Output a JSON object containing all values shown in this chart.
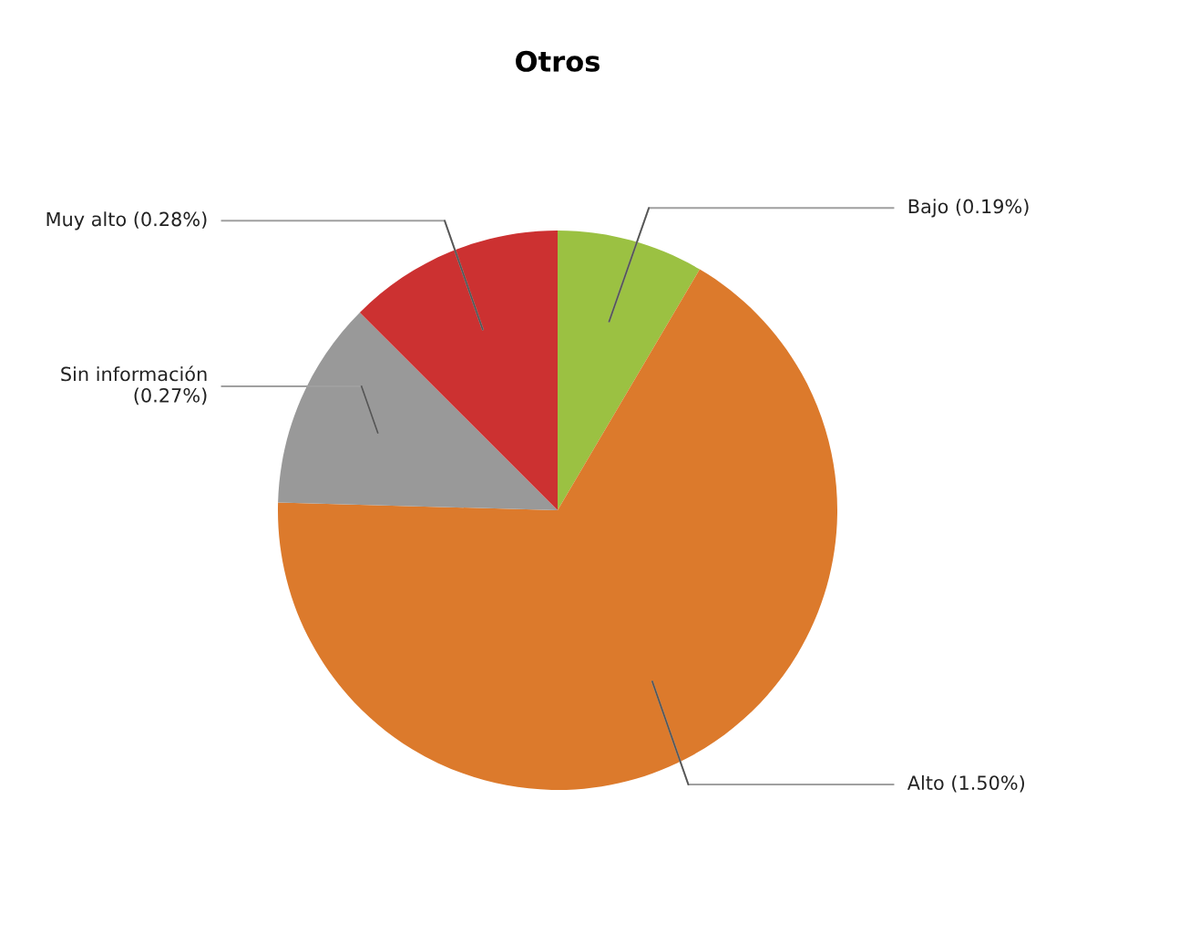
{
  "chart_data": {
    "type": "pie",
    "title": "Otros",
    "categories": [
      "Bajo",
      "Alto",
      "Sin información",
      "Muy alto"
    ],
    "values": [
      0.19,
      1.5,
      0.27,
      0.28
    ],
    "value_labels": [
      "(0.19%)",
      "(1.50%)",
      "(0.27%)",
      "(0.28%)"
    ],
    "colors": [
      "#9bc142",
      "#dc7a2c",
      "#999999",
      "#cc3131"
    ],
    "legend": false
  }
}
